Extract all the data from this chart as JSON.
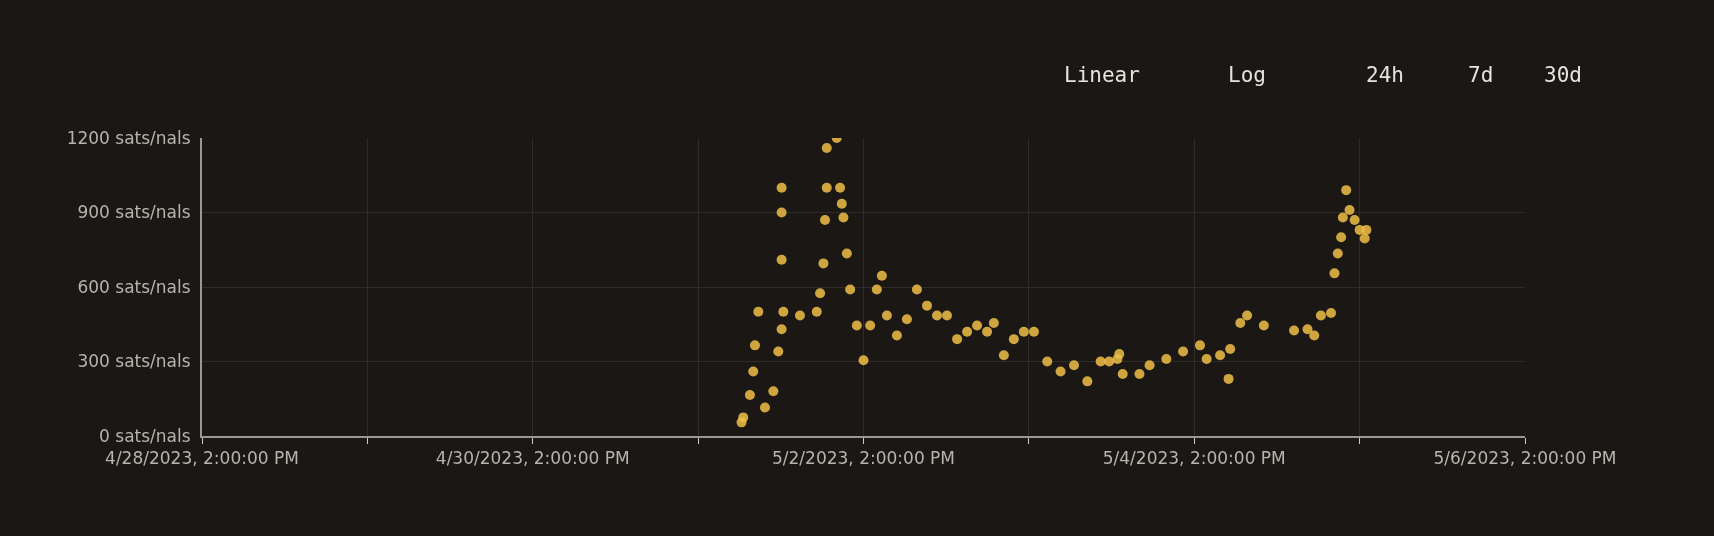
{
  "chart_data": {
    "type": "scatter",
    "marker": "circle",
    "grid": true,
    "annotations": [
      "Linear",
      "Log",
      "24h",
      "7d",
      "30d"
    ],
    "xlim": [
      "2023-04-28T14:00",
      "2023-05-06T14:00"
    ],
    "xticks": [
      {
        "value": "2023-04-28T14:00",
        "label": "4/28/2023, 2:00:00 PM"
      },
      {
        "value": "2023-04-29T14:00",
        "label": null
      },
      {
        "value": "2023-04-30T14:00",
        "label": "4/30/2023, 2:00:00 PM"
      },
      {
        "value": "2023-05-01T14:00",
        "label": null
      },
      {
        "value": "2023-05-02T14:00",
        "label": "5/2/2023, 2:00:00 PM"
      },
      {
        "value": "2023-05-03T14:00",
        "label": null
      },
      {
        "value": "2023-05-04T14:00",
        "label": "5/4/2023, 2:00:00 PM"
      },
      {
        "value": "2023-05-05T14:00",
        "label": null
      },
      {
        "value": "2023-05-06T14:00",
        "label": "5/6/2023, 2:00:00 PM"
      }
    ],
    "ylim": [
      0,
      1200
    ],
    "yticks": [
      {
        "value": 0,
        "label": "0 sats/nals"
      },
      {
        "value": 300,
        "label": "300 sats/nals"
      },
      {
        "value": 600,
        "label": "600 sats/nals"
      },
      {
        "value": 900,
        "label": "900 sats/nals"
      },
      {
        "value": 1200,
        "label": "1200 sats/nals"
      }
    ],
    "series": [
      {
        "color": "#f0be48",
        "x": [
          "2023-05-01T20:18",
          "2023-05-01T20:33",
          "2023-05-01T21:31",
          "2023-05-01T22:00",
          "2023-05-01T22:15",
          "2023-05-01T22:44",
          "2023-05-01T23:42",
          "2023-05-02T00:55",
          "2023-05-02T01:38",
          "2023-05-02T02:07",
          "2023-05-02T02:07",
          "2023-05-02T02:07",
          "2023-05-02T02:07",
          "2023-05-02T02:22",
          "2023-05-02T04:47",
          "2023-05-02T07:13",
          "2023-05-02T07:42",
          "2023-05-02T08:11",
          "2023-05-02T08:25",
          "2023-05-02T08:40",
          "2023-05-02T08:40",
          "2023-05-02T10:07",
          "2023-05-02T10:36",
          "2023-05-02T10:51",
          "2023-05-02T11:05",
          "2023-05-02T11:35",
          "2023-05-02T12:04",
          "2023-05-02T13:02",
          "2023-05-02T14:00",
          "2023-05-02T14:58",
          "2023-05-02T15:56",
          "2023-05-02T16:40",
          "2023-05-02T17:24",
          "2023-05-02T18:51",
          "2023-05-02T20:18",
          "2023-05-02T21:45",
          "2023-05-02T23:13",
          "2023-05-03T00:40",
          "2023-05-03T02:07",
          "2023-05-03T03:35",
          "2023-05-03T05:02",
          "2023-05-03T06:29",
          "2023-05-03T07:56",
          "2023-05-03T08:55",
          "2023-05-03T10:22",
          "2023-05-03T11:49",
          "2023-05-03T13:16",
          "2023-05-03T14:44",
          "2023-05-03T16:40",
          "2023-05-03T18:36",
          "2023-05-03T20:33",
          "2023-05-03T22:29",
          "2023-05-04T00:25",
          "2023-05-04T01:39",
          "2023-05-04T02:51",
          "2023-05-04T03:07",
          "2023-05-04T03:37",
          "2023-05-04T06:03",
          "2023-05-04T07:31",
          "2023-05-04T09:57",
          "2023-05-04T12:23",
          "2023-05-04T14:50",
          "2023-05-04T15:48",
          "2023-05-04T17:45",
          "2023-05-04T18:59",
          "2023-05-04T19:13",
          "2023-05-04T20:41",
          "2023-05-04T21:40",
          "2023-05-05T00:06",
          "2023-05-05T04:29",
          "2023-05-05T06:26",
          "2023-05-05T07:25",
          "2023-05-05T08:23",
          "2023-05-05T09:51",
          "2023-05-05T10:21",
          "2023-05-05T10:50",
          "2023-05-05T11:19",
          "2023-05-05T11:34",
          "2023-05-05T12:03",
          "2023-05-05T12:32",
          "2023-05-05T13:16",
          "2023-05-05T14:00",
          "2023-05-05T14:44",
          "2023-05-05T14:59"
        ],
        "values": [
          55,
          75,
          165,
          260,
          365,
          500,
          115,
          180,
          340,
          430,
          710,
          900,
          1000,
          500,
          485,
          500,
          575,
          695,
          870,
          1000,
          1160,
          1200,
          1000,
          935,
          880,
          735,
          590,
          445,
          305,
          445,
          590,
          645,
          485,
          405,
          470,
          590,
          525,
          485,
          485,
          390,
          420,
          445,
          420,
          455,
          325,
          390,
          420,
          420,
          300,
          260,
          285,
          220,
          300,
          300,
          310,
          330,
          250,
          250,
          285,
          310,
          340,
          365,
          310,
          325,
          230,
          350,
          455,
          485,
          445,
          425,
          430,
          405,
          485,
          495,
          655,
          735,
          800,
          880,
          990,
          910,
          870,
          830,
          795,
          830
        ]
      }
    ]
  }
}
